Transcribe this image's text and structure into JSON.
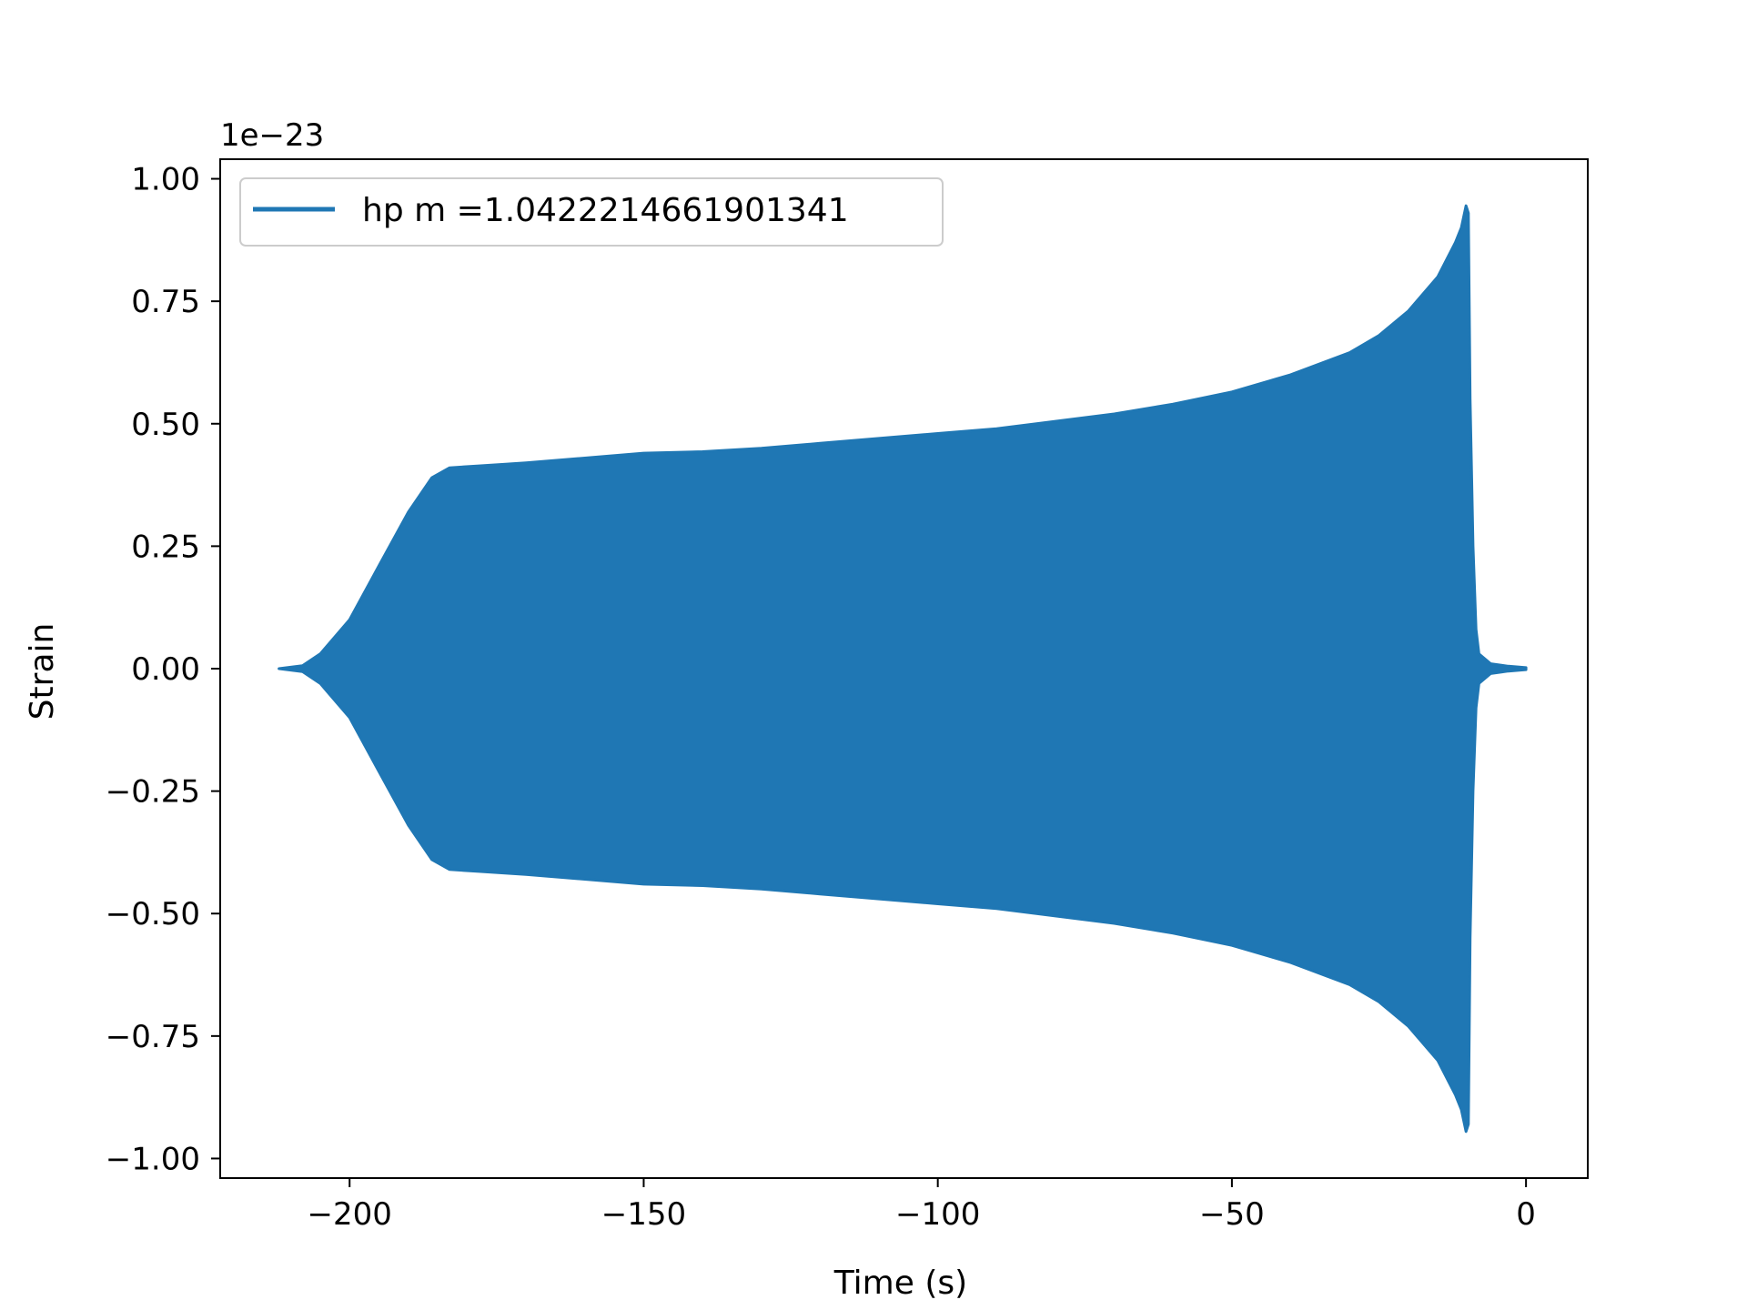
{
  "chart_data": {
    "type": "line",
    "title": "",
    "xlabel": "Time (s)",
    "ylabel": "Strain",
    "y_offset_label": "1e−23",
    "xlim": [
      -222,
      10.5
    ],
    "ylim": [
      -1.04,
      1.04
    ],
    "x_ticks": [
      -200,
      -150,
      -100,
      -50,
      0
    ],
    "x_tick_labels": [
      "−200",
      "−150",
      "−100",
      "−50",
      "0"
    ],
    "y_ticks": [
      1.0,
      0.75,
      0.5,
      0.25,
      0.0,
      -0.25,
      -0.5,
      -0.75,
      -1.0
    ],
    "y_tick_labels": [
      "1.00",
      "0.75",
      "0.50",
      "0.25",
      "0.00",
      "−0.25",
      "−0.50",
      "−0.75",
      "−1.00"
    ],
    "grid": false,
    "legend_position": "upper-left",
    "series": [
      {
        "name": "hp m =1.0422214661901341",
        "color": "#1f77b4",
        "envelope_upper": [
          [
            -212,
            0.0
          ],
          [
            -208,
            0.006
          ],
          [
            -205,
            0.03
          ],
          [
            -200,
            0.1
          ],
          [
            -195,
            0.21
          ],
          [
            -190,
            0.32
          ],
          [
            -186,
            0.39
          ],
          [
            -183,
            0.41
          ],
          [
            -178,
            0.414
          ],
          [
            -170,
            0.42
          ],
          [
            -160,
            0.43
          ],
          [
            -150,
            0.44
          ],
          [
            -140,
            0.443
          ],
          [
            -130,
            0.45
          ],
          [
            -120,
            0.46
          ],
          [
            -110,
            0.47
          ],
          [
            -100,
            0.48
          ],
          [
            -90,
            0.49
          ],
          [
            -80,
            0.505
          ],
          [
            -70,
            0.52
          ],
          [
            -60,
            0.54
          ],
          [
            -50,
            0.565
          ],
          [
            -40,
            0.6
          ],
          [
            -30,
            0.645
          ],
          [
            -25,
            0.68
          ],
          [
            -20,
            0.73
          ],
          [
            -15,
            0.8
          ],
          [
            -12,
            0.87
          ],
          [
            -11,
            0.9
          ],
          [
            -10.2,
            0.945
          ],
          [
            -9.8,
            0.93
          ],
          [
            -9.5,
            0.55
          ],
          [
            -9,
            0.25
          ],
          [
            -8.5,
            0.08
          ],
          [
            -8,
            0.03
          ],
          [
            -6,
            0.01
          ],
          [
            -3,
            0.005
          ],
          [
            0,
            0.002
          ]
        ],
        "envelope_lower": [
          [
            -212,
            0.0
          ],
          [
            -208,
            -0.006
          ],
          [
            -205,
            -0.03
          ],
          [
            -200,
            -0.1
          ],
          [
            -195,
            -0.21
          ],
          [
            -190,
            -0.32
          ],
          [
            -186,
            -0.39
          ],
          [
            -183,
            -0.41
          ],
          [
            -178,
            -0.414
          ],
          [
            -170,
            -0.42
          ],
          [
            -160,
            -0.43
          ],
          [
            -150,
            -0.44
          ],
          [
            -140,
            -0.443
          ],
          [
            -130,
            -0.45
          ],
          [
            -120,
            -0.46
          ],
          [
            -110,
            -0.47
          ],
          [
            -100,
            -0.48
          ],
          [
            -90,
            -0.49
          ],
          [
            -80,
            -0.505
          ],
          [
            -70,
            -0.52
          ],
          [
            -60,
            -0.54
          ],
          [
            -50,
            -0.565
          ],
          [
            -40,
            -0.6
          ],
          [
            -30,
            -0.645
          ],
          [
            -25,
            -0.68
          ],
          [
            -20,
            -0.73
          ],
          [
            -15,
            -0.8
          ],
          [
            -12,
            -0.87
          ],
          [
            -11,
            -0.9
          ],
          [
            -10.2,
            -0.945
          ],
          [
            -9.8,
            -0.93
          ],
          [
            -9.5,
            -0.55
          ],
          [
            -9,
            -0.25
          ],
          [
            -8.5,
            -0.08
          ],
          [
            -8,
            -0.03
          ],
          [
            -6,
            -0.01
          ],
          [
            -3,
            -0.005
          ],
          [
            0,
            -0.002
          ]
        ]
      }
    ]
  }
}
